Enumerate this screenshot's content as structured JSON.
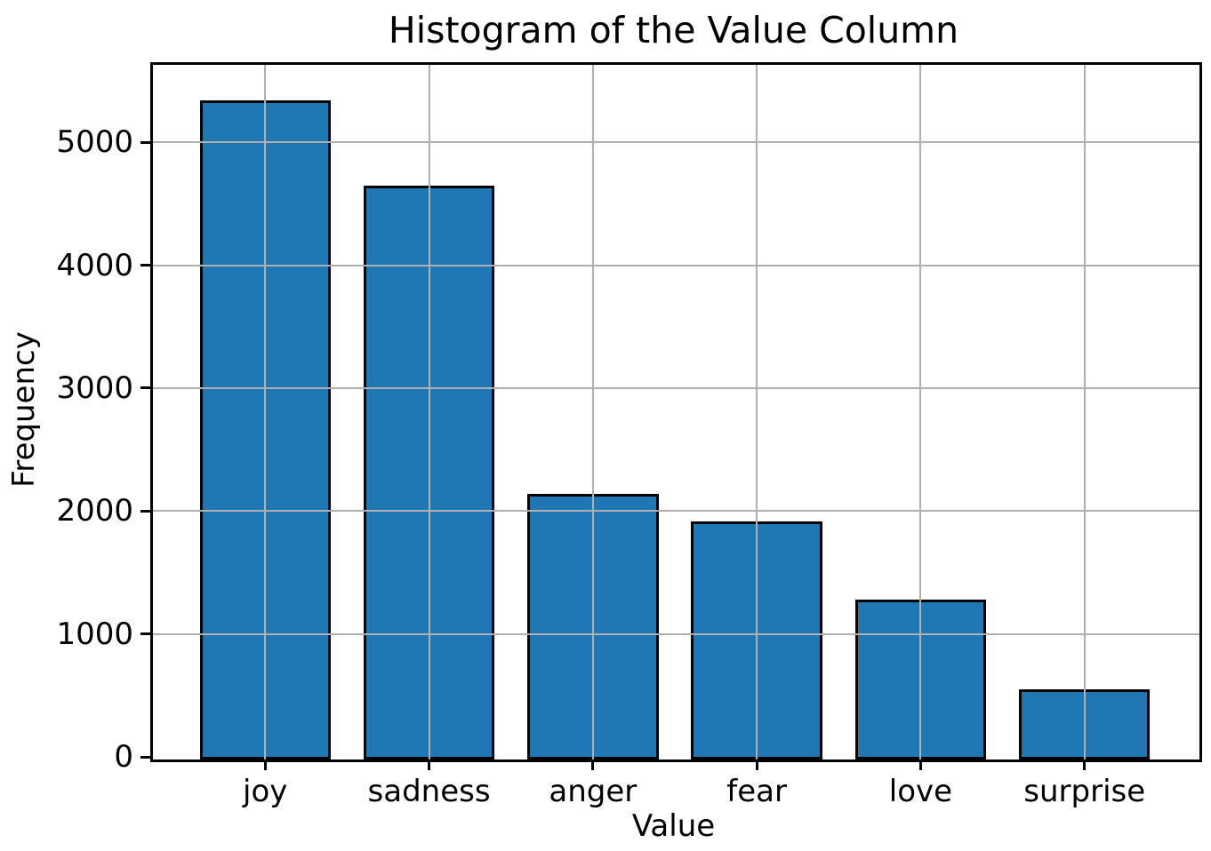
{
  "figure": {
    "background": "#ffffff",
    "text_color": "#000000"
  },
  "chart_data": {
    "type": "bar",
    "title": "Histogram of the Value Column",
    "xlabel": "Value",
    "ylabel": "Frequency",
    "categories": [
      "joy",
      "sadness",
      "anger",
      "fear",
      "love",
      "surprise"
    ],
    "values": [
      5362,
      4666,
      2159,
      1937,
      1304,
      572
    ],
    "ylim": [
      0,
      5630
    ],
    "yticks": [
      0,
      1000,
      2000,
      3000,
      4000,
      5000
    ],
    "xlim": [
      -0.685,
      5.685
    ],
    "bar_width_units": 0.8,
    "bar_color": "#1f77b4",
    "bar_edge_color": "#000000",
    "grid": true,
    "grid_color": "#b0b0b0",
    "grid_above_bars": true,
    "legend_position": "none"
  }
}
